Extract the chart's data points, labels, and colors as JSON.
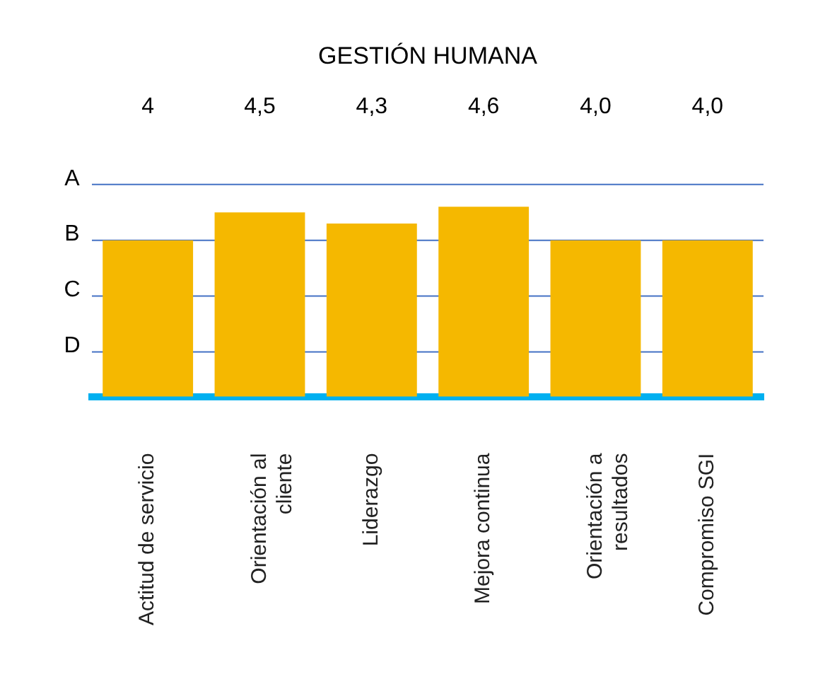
{
  "chart_data": {
    "type": "bar",
    "title": "GESTIÓN HUMANA",
    "categories": [
      "Actitud de servicio",
      "Orientación al cliente",
      "Liderazgo",
      "Mejora continua",
      "Orientación a resultados",
      "Compromiso SGI"
    ],
    "values": [
      4,
      4.5,
      4.3,
      4.6,
      4.0,
      4.0
    ],
    "color": "#f5b800",
    "value_labels": [
      "4",
      "4,5",
      "4,3",
      "4,6",
      "4,0",
      "4,0"
    ],
    "ylim": [
      1.2,
      5
    ],
    "ref_lines": [
      {
        "axis": "y",
        "value": 2,
        "label": "D",
        "color": "#4472c4"
      },
      {
        "axis": "y",
        "value": 3,
        "label": "C",
        "color": "#4472c4"
      },
      {
        "axis": "y",
        "value": 4,
        "label": "B",
        "color": "#4472c4"
      },
      {
        "axis": "y",
        "value": 5,
        "label": "A",
        "color": "#4472c4"
      }
    ],
    "legend": false
  }
}
